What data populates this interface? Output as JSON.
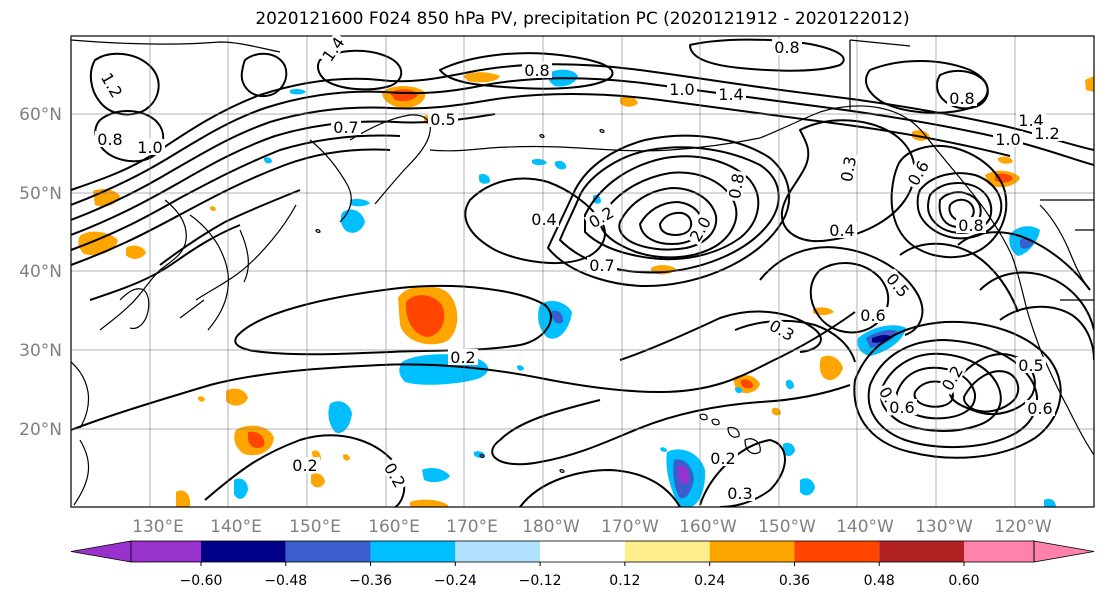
{
  "title": "2020121600 F024 850 hPa PV, precipitation PC (2020121912 - 2020122012)",
  "map": {
    "lat_ticks": [
      "20°N",
      "30°N",
      "40°N",
      "50°N",
      "60°N"
    ],
    "lon_ticks": [
      "130°E",
      "140°E",
      "150°E",
      "160°E",
      "170°E",
      "180°W",
      "170°W",
      "160°W",
      "150°W",
      "140°W",
      "130°W",
      "120°W"
    ],
    "contour_labels": [
      "1.4",
      "1.2",
      "0.8",
      "1.0",
      "0.7",
      "0.5",
      "0.8",
      "1.0",
      "1.4",
      "0.8",
      "0.4",
      "0.2",
      "2.0",
      "0.7",
      "0.3",
      "0.4",
      "0.5",
      "0.6",
      "0.3",
      "0.2",
      "0.7",
      "0.2",
      "0.6",
      "0.5",
      "0.6",
      "0.2",
      "0.3",
      "0.2",
      "0.2",
      "0.8",
      "1.4",
      "1.0",
      "1.2",
      "0.8",
      "0.6",
      "0.8"
    ]
  },
  "colorbar": {
    "colors": [
      "#9932cc",
      "#00008b",
      "#3a5fcd",
      "#00bfff",
      "#b0e2ff",
      "#ffffff",
      "#ffec8b",
      "#ffa500",
      "#ff4500",
      "#b22222",
      "#ff82ab"
    ],
    "tick_labels": [
      "−0.60",
      "−0.48",
      "−0.36",
      "−0.24",
      "−0.12",
      "0.12",
      "0.24",
      "0.36",
      "0.48",
      "0.60"
    ]
  },
  "colors": {
    "contour": "#000000",
    "coast": "#000000",
    "grid": "#808080",
    "axis_label": "#808080"
  }
}
